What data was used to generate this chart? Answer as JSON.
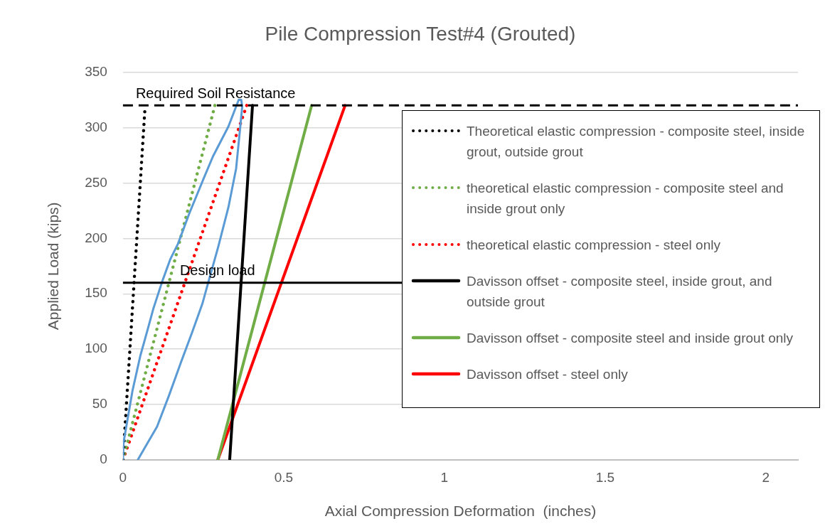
{
  "chart_data": {
    "type": "line",
    "title": "Pile Compression Test#4 (Grouted)",
    "xlabel": "Axial Compression Deformation  (inches)",
    "ylabel": "Applied Load (kips)",
    "xlim": [
      0,
      2.1
    ],
    "xticks": [
      0,
      0.5,
      1,
      1.5,
      2
    ],
    "ylim": [
      0,
      350
    ],
    "yticks": [
      0,
      50,
      100,
      150,
      200,
      250,
      300,
      350
    ],
    "grid": "y",
    "legend": "right",
    "marker": "none",
    "ref_lines": [
      {
        "axis": "y",
        "value": 320,
        "label": "Required Soil Resistance",
        "color": "#000000",
        "line_style": "dashed"
      },
      {
        "axis": "y",
        "value": 160,
        "label": "Design load",
        "color": "#000000",
        "line_style": "solid"
      }
    ],
    "series": [
      {
        "color": "#5b9bd5",
        "line_style": "solid",
        "x": [
          0,
          0.002,
          0.03,
          0.054,
          0.078,
          0.094,
          0.122,
          0.147,
          0.171,
          0.207,
          0.251,
          0.28,
          0.328,
          0.36,
          0.368,
          0.371,
          0.364,
          0.352,
          0.328,
          0.296,
          0.267,
          0.247,
          0.215,
          0.179,
          0.143,
          0.106,
          0.078,
          0.046
        ],
        "values": [
          0,
          16,
          63,
          94,
          119,
          136,
          161,
          181,
          195,
          223,
          254,
          274,
          301,
          325,
          325,
          319,
          298,
          263,
          228,
          192,
          162,
          141,
          115,
          87,
          58,
          30,
          16,
          0
        ]
      },
      {
        "name": "Theoretical elastic compression - composite steel, inside grout, outside grout",
        "color": "#000000",
        "line_style": "dotted",
        "x": [
          0,
          0.069
        ],
        "values": [
          0,
          320
        ]
      },
      {
        "name": "theoretical elastic compression - composite steel and inside grout only",
        "color": "#70ad47",
        "line_style": "dotted",
        "x": [
          0,
          0.286
        ],
        "values": [
          0,
          320
        ]
      },
      {
        "name": "theoretical elastic compression - steel only",
        "color": "#ff0000",
        "line_style": "dotted",
        "x": [
          0,
          0.385
        ],
        "values": [
          0,
          320
        ]
      },
      {
        "name": "Davisson offset - composite steel, inside grout, and outside grout",
        "color": "#000000",
        "line_style": "solid",
        "x": [
          0.332,
          0.403
        ],
        "values": [
          0,
          320
        ]
      },
      {
        "name": "Davisson offset - composite steel and inside grout only",
        "color": "#70ad47",
        "line_style": "solid",
        "x": [
          0.295,
          0.587
        ],
        "values": [
          0,
          320
        ]
      },
      {
        "name": "Davisson offset - steel only",
        "color": "#ff0000",
        "line_style": "solid",
        "x": [
          0.295,
          0.691
        ],
        "values": [
          0,
          320
        ]
      }
    ]
  }
}
